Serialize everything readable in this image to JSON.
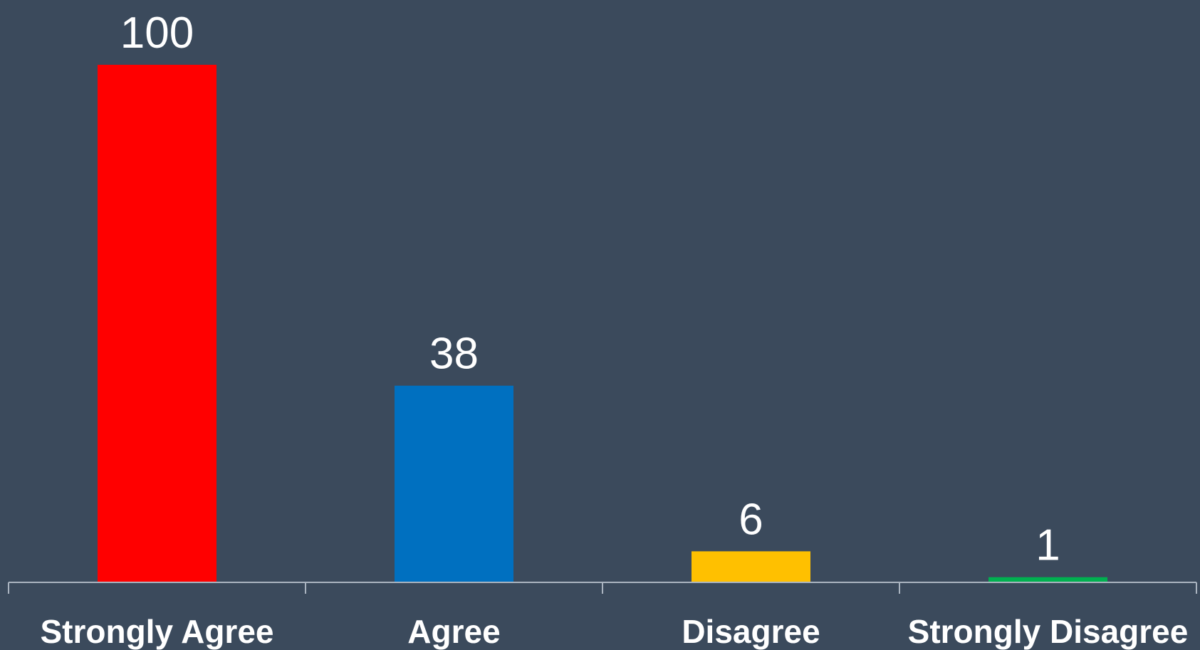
{
  "chart_data": {
    "type": "bar",
    "categories": [
      "Strongly Agree",
      "Agree",
      "Disagree",
      "Strongly Disagree"
    ],
    "values": [
      100,
      38,
      6,
      1
    ],
    "colors": [
      "#ff0000",
      "#0070c0",
      "#ffc000",
      "#00b050"
    ],
    "ylim": [
      0,
      100
    ],
    "grid": false,
    "legend": "none",
    "title": "",
    "xlabel": "",
    "ylabel": "",
    "background": "#3b4a5c"
  }
}
